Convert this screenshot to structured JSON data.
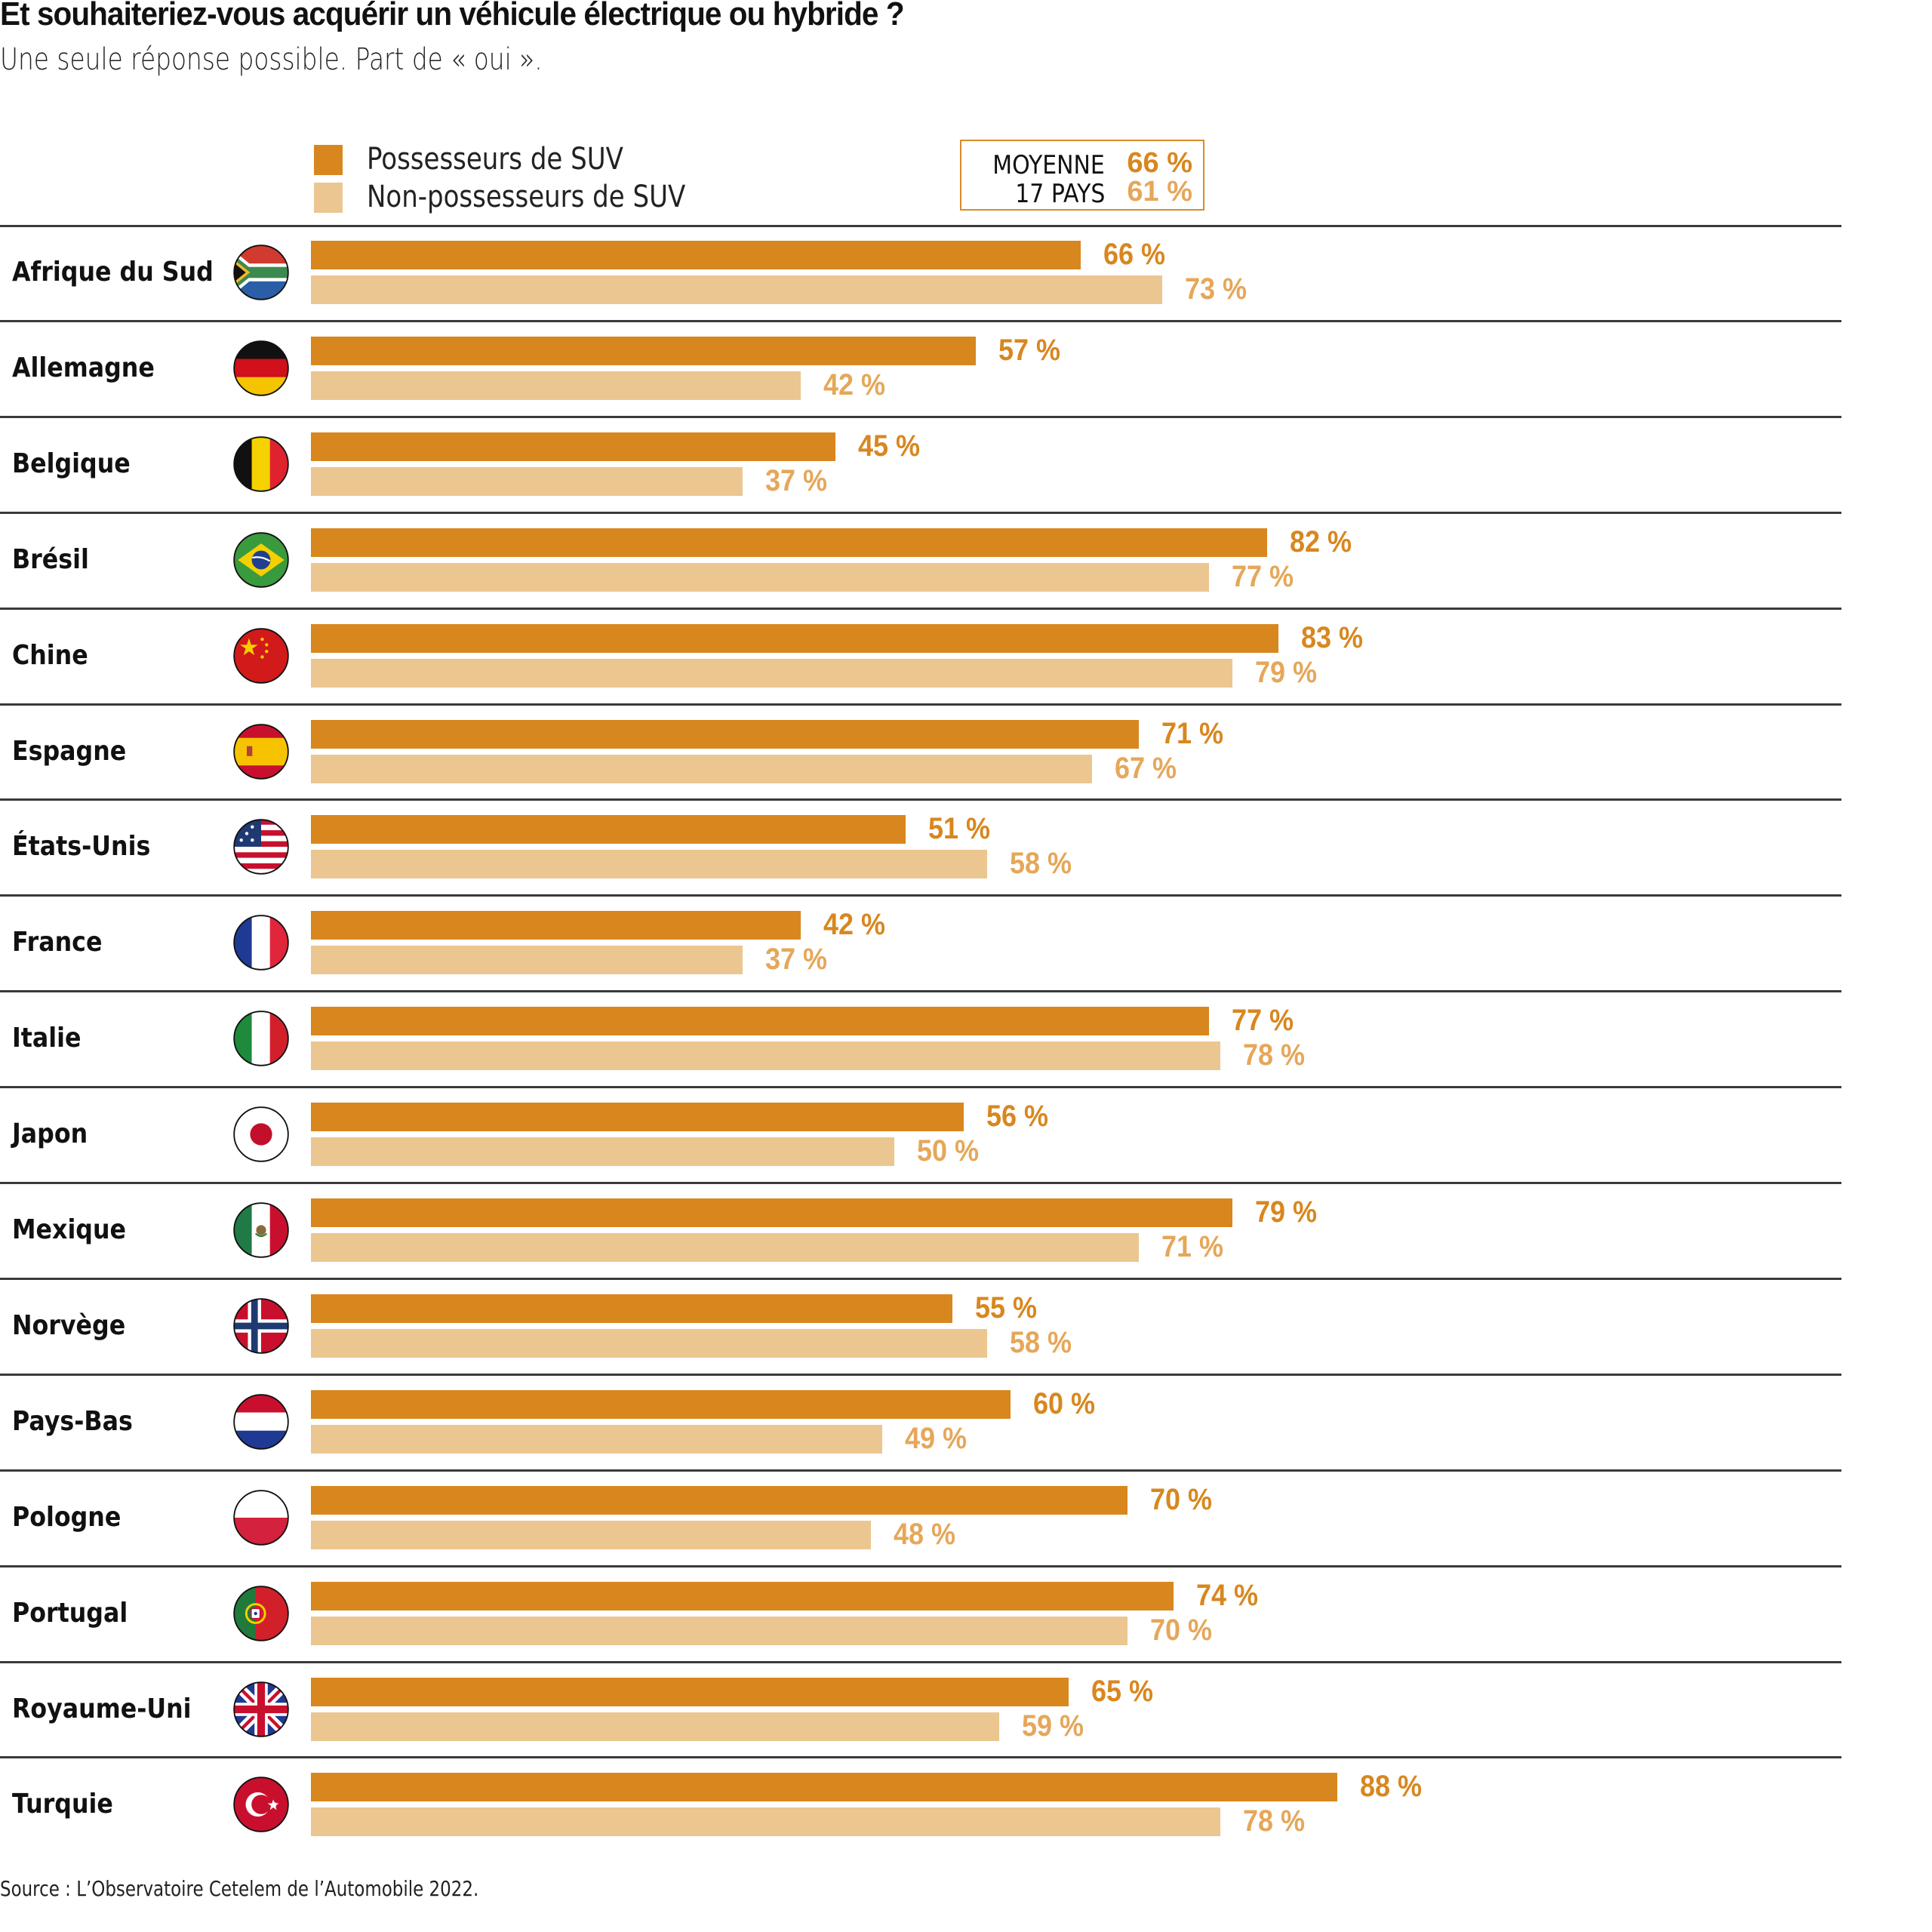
{
  "header": {
    "title": "Et souhaiteriez-vous acquérir un véhicule électrique ou hybride ?",
    "subtitle": "Une seule réponse possible. Part de « oui »."
  },
  "legend": {
    "items": [
      {
        "label": "Possesseurs de SUV",
        "color": "#d8871f"
      },
      {
        "label": "Non-possesseurs de SUV",
        "color": "#ecc690"
      }
    ]
  },
  "average_box": {
    "label_line1": "MOYENNE",
    "label_line2": "17 PAYS",
    "suv_value": "66 %",
    "non_suv_value": "61 %",
    "suv_color": "#d8871f",
    "non_suv_color": "#e5a75a",
    "border_color": "#d98b2a"
  },
  "footer": {
    "source": "Source : L’Observatoire Cetelem de l’Automobile 2022."
  },
  "chart_data": {
    "type": "bar",
    "orientation": "horizontal",
    "title": "Et souhaiteriez-vous acquérir un véhicule électrique ou hybride ?",
    "subtitle": "Une seule réponse possible. Part de « oui ».",
    "xlabel": "",
    "ylabel": "",
    "unit": "%",
    "xlim": [
      0,
      100
    ],
    "grid": false,
    "legend_position": "top",
    "categories": [
      "Afrique du Sud",
      "Allemagne",
      "Belgique",
      "Brésil",
      "Chine",
      "Espagne",
      "États-Unis",
      "France",
      "Italie",
      "Japon",
      "Mexique",
      "Norvège",
      "Pays-Bas",
      "Pologne",
      "Portugal",
      "Royaume-Uni",
      "Turquie"
    ],
    "flags": [
      "south-africa-flag",
      "germany-flag",
      "belgium-flag",
      "brazil-flag",
      "china-flag",
      "spain-flag",
      "usa-flag",
      "france-flag",
      "italy-flag",
      "japan-flag",
      "mexico-flag",
      "norway-flag",
      "netherlands-flag",
      "poland-flag",
      "portugal-flag",
      "uk-flag",
      "turkey-flag"
    ],
    "series": [
      {
        "name": "Possesseurs de SUV",
        "color": "#d8871f",
        "label_color": "#d8871f",
        "values": [
          66,
          57,
          45,
          82,
          83,
          71,
          51,
          42,
          77,
          56,
          79,
          55,
          60,
          70,
          74,
          65,
          88
        ]
      },
      {
        "name": "Non-possesseurs de SUV",
        "color": "#ecc690",
        "label_color": "#e5a75a",
        "values": [
          73,
          42,
          37,
          77,
          79,
          67,
          58,
          37,
          78,
          50,
          71,
          58,
          49,
          48,
          70,
          59,
          78
        ]
      }
    ],
    "averages": {
      "Possesseurs de SUV": 66,
      "Non-possesseurs de SUV": 61
    },
    "annotations": [
      "MOYENNE 17 PAYS"
    ],
    "source": "Source : L’Observatoire Cetelem de l’Automobile 2022."
  }
}
